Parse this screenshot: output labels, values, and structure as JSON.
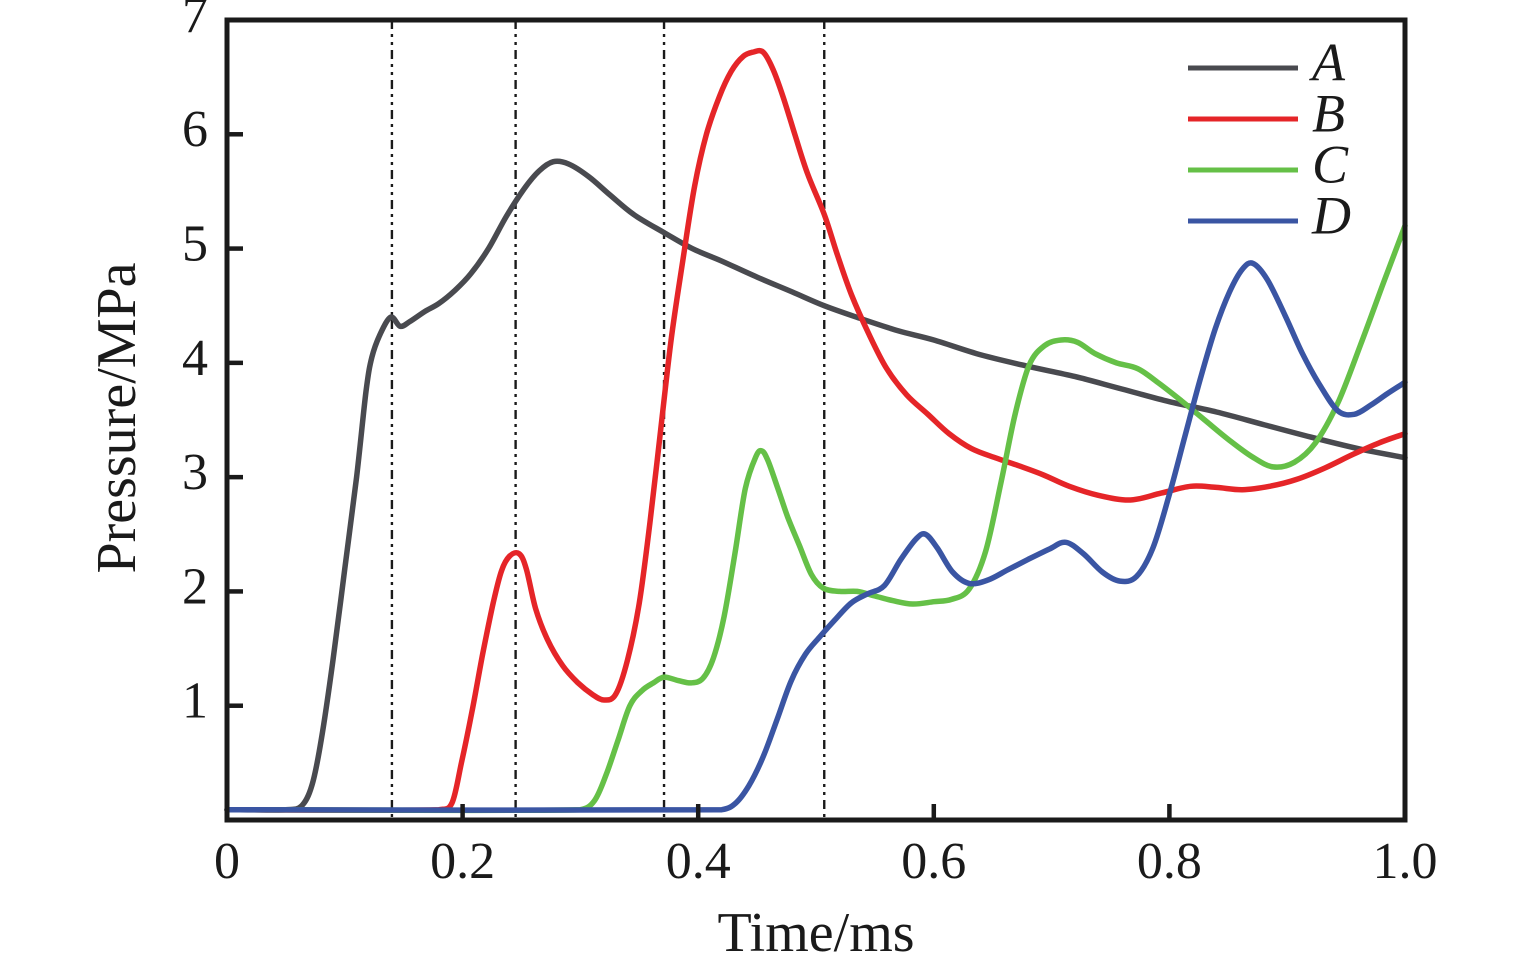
{
  "figure": {
    "background": "#ffffff",
    "axis_color": "#1a1a1a",
    "marker_line_color": "#1a1a1a"
  },
  "chart_data": {
    "type": "line",
    "title": "",
    "xlabel": "Time/ms",
    "ylabel": "Pressure/MPa",
    "xlim": [
      0,
      1.0
    ],
    "ylim": [
      0,
      7
    ],
    "grid": false,
    "legend_position": "top-right",
    "x_ticks": {
      "values": [
        0,
        0.2,
        0.4,
        0.6,
        0.8,
        1.0
      ],
      "labels": [
        "0",
        "0.2",
        "0.4",
        "0.6",
        "0.8",
        "1.0"
      ]
    },
    "y_ticks": {
      "values": [
        1,
        2,
        3,
        4,
        5,
        6,
        7
      ],
      "labels": [
        "1",
        "2",
        "3",
        "4",
        "5",
        "6",
        "7"
      ]
    },
    "event_marker_lines_x": [
      0.14,
      0.245,
      0.371,
      0.507
    ],
    "series": [
      {
        "name": "A",
        "color": "#494a4f",
        "points": [
          [
            0,
            0.09
          ],
          [
            0.05,
            0.09
          ],
          [
            0.063,
            0.12
          ],
          [
            0.072,
            0.3
          ],
          [
            0.08,
            0.7
          ],
          [
            0.09,
            1.4
          ],
          [
            0.1,
            2.2
          ],
          [
            0.11,
            3.0
          ],
          [
            0.118,
            3.75
          ],
          [
            0.123,
            4.05
          ],
          [
            0.13,
            4.25
          ],
          [
            0.139,
            4.4
          ],
          [
            0.147,
            4.32
          ],
          [
            0.155,
            4.36
          ],
          [
            0.168,
            4.45
          ],
          [
            0.18,
            4.52
          ],
          [
            0.193,
            4.63
          ],
          [
            0.207,
            4.78
          ],
          [
            0.222,
            5.0
          ],
          [
            0.237,
            5.28
          ],
          [
            0.252,
            5.52
          ],
          [
            0.265,
            5.68
          ],
          [
            0.277,
            5.76
          ],
          [
            0.29,
            5.74
          ],
          [
            0.307,
            5.63
          ],
          [
            0.325,
            5.47
          ],
          [
            0.345,
            5.3
          ],
          [
            0.371,
            5.14
          ],
          [
            0.395,
            5.0
          ],
          [
            0.42,
            4.89
          ],
          [
            0.45,
            4.75
          ],
          [
            0.48,
            4.62
          ],
          [
            0.507,
            4.5
          ],
          [
            0.54,
            4.38
          ],
          [
            0.57,
            4.28
          ],
          [
            0.6,
            4.2
          ],
          [
            0.64,
            4.07
          ],
          [
            0.68,
            3.97
          ],
          [
            0.72,
            3.88
          ],
          [
            0.76,
            3.77
          ],
          [
            0.8,
            3.66
          ],
          [
            0.84,
            3.57
          ],
          [
            0.88,
            3.46
          ],
          [
            0.92,
            3.35
          ],
          [
            0.96,
            3.25
          ],
          [
            1,
            3.17
          ]
        ]
      },
      {
        "name": "B",
        "color": "#e52528",
        "points": [
          [
            0,
            0.09
          ],
          [
            0.18,
            0.09
          ],
          [
            0.191,
            0.15
          ],
          [
            0.199,
            0.5
          ],
          [
            0.208,
            0.95
          ],
          [
            0.217,
            1.45
          ],
          [
            0.226,
            1.9
          ],
          [
            0.233,
            2.18
          ],
          [
            0.24,
            2.31
          ],
          [
            0.248,
            2.33
          ],
          [
            0.254,
            2.2
          ],
          [
            0.262,
            1.85
          ],
          [
            0.272,
            1.58
          ],
          [
            0.285,
            1.35
          ],
          [
            0.298,
            1.2
          ],
          [
            0.31,
            1.1
          ],
          [
            0.32,
            1.05
          ],
          [
            0.33,
            1.1
          ],
          [
            0.34,
            1.4
          ],
          [
            0.35,
            1.9
          ],
          [
            0.359,
            2.6
          ],
          [
            0.368,
            3.4
          ],
          [
            0.377,
            4.2
          ],
          [
            0.387,
            4.9
          ],
          [
            0.397,
            5.55
          ],
          [
            0.407,
            6.0
          ],
          [
            0.418,
            6.33
          ],
          [
            0.428,
            6.55
          ],
          [
            0.438,
            6.68
          ],
          [
            0.447,
            6.72
          ],
          [
            0.455,
            6.72
          ],
          [
            0.463,
            6.58
          ],
          [
            0.472,
            6.33
          ],
          [
            0.482,
            6.0
          ],
          [
            0.493,
            5.65
          ],
          [
            0.507,
            5.3
          ],
          [
            0.518,
            4.95
          ],
          [
            0.53,
            4.6
          ],
          [
            0.545,
            4.25
          ],
          [
            0.56,
            3.95
          ],
          [
            0.577,
            3.72
          ],
          [
            0.595,
            3.55
          ],
          [
            0.613,
            3.38
          ],
          [
            0.632,
            3.25
          ],
          [
            0.652,
            3.17
          ],
          [
            0.672,
            3.1
          ],
          [
            0.693,
            3.02
          ],
          [
            0.715,
            2.92
          ],
          [
            0.74,
            2.84
          ],
          [
            0.767,
            2.8
          ],
          [
            0.793,
            2.86
          ],
          [
            0.818,
            2.92
          ],
          [
            0.84,
            2.91
          ],
          [
            0.862,
            2.89
          ],
          [
            0.885,
            2.92
          ],
          [
            0.908,
            2.98
          ],
          [
            0.932,
            3.08
          ],
          [
            0.956,
            3.2
          ],
          [
            0.978,
            3.3
          ],
          [
            1,
            3.38
          ]
        ]
      },
      {
        "name": "C",
        "color": "#65c047",
        "points": [
          [
            0,
            0.09
          ],
          [
            0.3,
            0.09
          ],
          [
            0.312,
            0.17
          ],
          [
            0.322,
            0.4
          ],
          [
            0.332,
            0.7
          ],
          [
            0.342,
            1.0
          ],
          [
            0.352,
            1.13
          ],
          [
            0.362,
            1.2
          ],
          [
            0.371,
            1.25
          ],
          [
            0.383,
            1.22
          ],
          [
            0.394,
            1.2
          ],
          [
            0.404,
            1.24
          ],
          [
            0.413,
            1.42
          ],
          [
            0.422,
            1.78
          ],
          [
            0.431,
            2.32
          ],
          [
            0.44,
            2.9
          ],
          [
            0.449,
            3.18
          ],
          [
            0.454,
            3.23
          ],
          [
            0.459,
            3.15
          ],
          [
            0.467,
            2.92
          ],
          [
            0.476,
            2.65
          ],
          [
            0.486,
            2.4
          ],
          [
            0.496,
            2.15
          ],
          [
            0.506,
            2.03
          ],
          [
            0.52,
            2.0
          ],
          [
            0.535,
            2.0
          ],
          [
            0.55,
            1.96
          ],
          [
            0.565,
            1.92
          ],
          [
            0.582,
            1.89
          ],
          [
            0.6,
            1.91
          ],
          [
            0.615,
            1.93
          ],
          [
            0.63,
            2.02
          ],
          [
            0.644,
            2.35
          ],
          [
            0.657,
            2.95
          ],
          [
            0.669,
            3.55
          ],
          [
            0.681,
            3.98
          ],
          [
            0.694,
            4.15
          ],
          [
            0.708,
            4.2
          ],
          [
            0.722,
            4.18
          ],
          [
            0.737,
            4.08
          ],
          [
            0.755,
            4.0
          ],
          [
            0.773,
            3.95
          ],
          [
            0.79,
            3.83
          ],
          [
            0.81,
            3.67
          ],
          [
            0.83,
            3.5
          ],
          [
            0.85,
            3.33
          ],
          [
            0.87,
            3.18
          ],
          [
            0.888,
            3.09
          ],
          [
            0.906,
            3.13
          ],
          [
            0.924,
            3.3
          ],
          [
            0.943,
            3.65
          ],
          [
            0.962,
            4.15
          ],
          [
            0.981,
            4.68
          ],
          [
            1,
            5.2
          ]
        ]
      },
      {
        "name": "D",
        "color": "#3a55a3",
        "points": [
          [
            0,
            0.09
          ],
          [
            0.42,
            0.09
          ],
          [
            0.432,
            0.15
          ],
          [
            0.443,
            0.3
          ],
          [
            0.455,
            0.55
          ],
          [
            0.467,
            0.88
          ],
          [
            0.479,
            1.22
          ],
          [
            0.491,
            1.45
          ],
          [
            0.503,
            1.6
          ],
          [
            0.516,
            1.75
          ],
          [
            0.53,
            1.9
          ],
          [
            0.544,
            1.98
          ],
          [
            0.558,
            2.05
          ],
          [
            0.572,
            2.28
          ],
          [
            0.585,
            2.46
          ],
          [
            0.593,
            2.5
          ],
          [
            0.603,
            2.38
          ],
          [
            0.616,
            2.17
          ],
          [
            0.63,
            2.07
          ],
          [
            0.646,
            2.1
          ],
          [
            0.663,
            2.19
          ],
          [
            0.68,
            2.28
          ],
          [
            0.698,
            2.37
          ],
          [
            0.712,
            2.43
          ],
          [
            0.727,
            2.33
          ],
          [
            0.743,
            2.17
          ],
          [
            0.758,
            2.09
          ],
          [
            0.772,
            2.13
          ],
          [
            0.786,
            2.38
          ],
          [
            0.8,
            2.85
          ],
          [
            0.813,
            3.35
          ],
          [
            0.826,
            3.85
          ],
          [
            0.839,
            4.3
          ],
          [
            0.851,
            4.62
          ],
          [
            0.862,
            4.82
          ],
          [
            0.871,
            4.87
          ],
          [
            0.883,
            4.73
          ],
          [
            0.898,
            4.42
          ],
          [
            0.913,
            4.08
          ],
          [
            0.928,
            3.8
          ],
          [
            0.943,
            3.58
          ],
          [
            0.957,
            3.55
          ],
          [
            0.971,
            3.63
          ],
          [
            0.985,
            3.73
          ],
          [
            1,
            3.83
          ]
        ]
      }
    ]
  }
}
